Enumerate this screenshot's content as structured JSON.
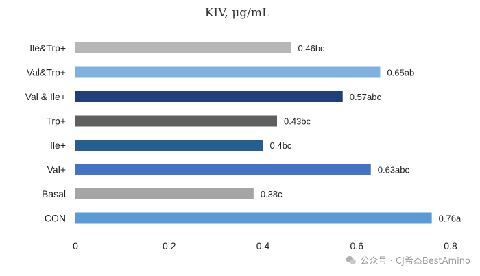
{
  "chart_data": {
    "type": "bar",
    "orientation": "horizontal",
    "title": "KIV, μg/mL",
    "xlabel": "",
    "ylabel": "",
    "xlim": [
      0,
      0.8
    ],
    "xticks": [
      "0",
      "0.2",
      "0.4",
      "0.6",
      "0.8"
    ],
    "grid": false,
    "categories": [
      "Ile&Trp+",
      "Val&Trp+",
      "Val & Ile+",
      "Trp+",
      "Ile+",
      "Val+",
      "Basal",
      "CON"
    ],
    "values": [
      0.46,
      0.65,
      0.57,
      0.43,
      0.4,
      0.63,
      0.38,
      0.76
    ],
    "labels": [
      "0.46bc",
      "0.65ab",
      "0.57abc",
      "0.43bc",
      "0.4bc",
      "0.63abc",
      "0.38c",
      "0.76a"
    ],
    "colors": [
      "#b7b7b7",
      "#7fb0e0",
      "#203f78",
      "#5f5f5f",
      "#255e91",
      "#4472c4",
      "#a5a5a5",
      "#5b9bd5"
    ]
  },
  "watermark": {
    "text": "公众号 · CJ希杰BestAmino",
    "icon": "wechat-icon"
  }
}
